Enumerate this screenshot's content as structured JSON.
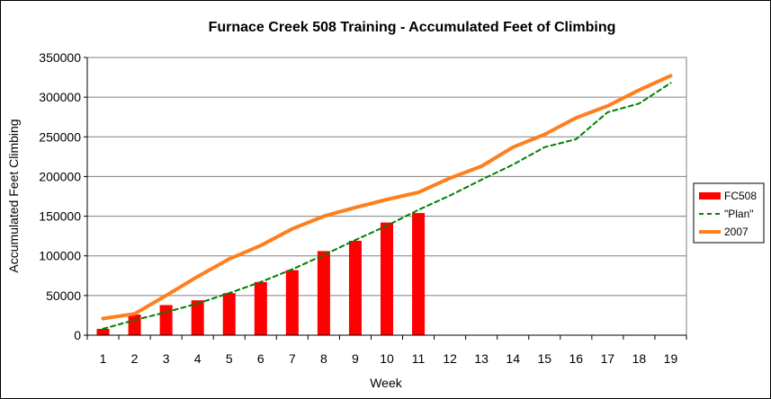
{
  "chart_data": {
    "type": "bar",
    "title": "Furnace Creek 508 Training - Accumulated Feet of Climbing",
    "xlabel": "Week",
    "ylabel": "Accumulated Feet Climbing",
    "ylim": [
      0,
      350000
    ],
    "yticks": [
      0,
      50000,
      100000,
      150000,
      200000,
      250000,
      300000,
      350000
    ],
    "ytick_labels": [
      "0",
      "50000",
      "100000",
      "150000",
      "200000",
      "250000",
      "300000",
      "350000"
    ],
    "categories": [
      "1",
      "2",
      "3",
      "4",
      "5",
      "6",
      "7",
      "8",
      "9",
      "10",
      "11",
      "12",
      "13",
      "14",
      "15",
      "16",
      "17",
      "18",
      "19"
    ],
    "grid": true,
    "legend_position": "right",
    "series": [
      {
        "name": "FC508",
        "kind": "bar",
        "color": "#ff0000",
        "values": [
          8000,
          26000,
          38000,
          44000,
          53000,
          67000,
          82000,
          106000,
          119000,
          142000,
          154000,
          null,
          null,
          null,
          null,
          null,
          null,
          null,
          null
        ]
      },
      {
        "name": "\"Plan\"",
        "kind": "line",
        "style": "dashed",
        "color": "#008000",
        "values": [
          8000,
          19000,
          29000,
          40000,
          53000,
          67000,
          83000,
          101000,
          120000,
          138000,
          158000,
          176000,
          196000,
          215000,
          237000,
          247000,
          281000,
          292000,
          318000
        ]
      },
      {
        "name": "2007",
        "kind": "line",
        "style": "solid",
        "color": "#ff7f1e",
        "values": [
          21000,
          27000,
          50000,
          74000,
          96000,
          113000,
          134000,
          150000,
          161000,
          171000,
          180000,
          198000,
          213000,
          237000,
          253000,
          274000,
          289000,
          309000,
          327000
        ]
      }
    ]
  }
}
